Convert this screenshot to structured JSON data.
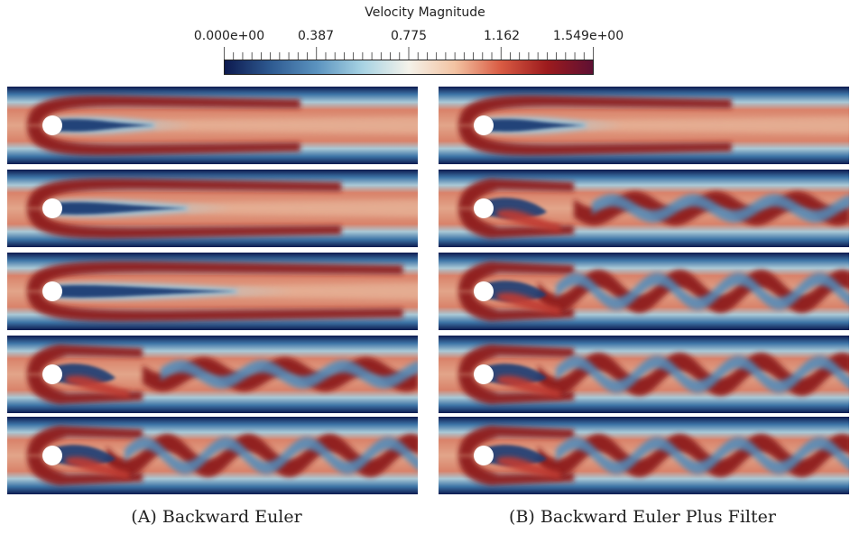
{
  "colorbar": {
    "title": "Velocity Magnitude",
    "tick_labels": [
      "0.000e+00",
      "0.387",
      "0.775",
      "1.162",
      "1.549e+00"
    ],
    "tick_values": [
      0.0,
      0.387,
      0.775,
      1.162,
      1.549
    ],
    "range": [
      0.0,
      1.549
    ],
    "colors": [
      "#0d1a4f",
      "#2e5a91",
      "#5b93bf",
      "#a8d3e3",
      "#f4f2ea",
      "#f3c3a2",
      "#d95b43",
      "#9d1b1d",
      "#5e1033"
    ]
  },
  "captions": {
    "left_tag": "(A)",
    "left_text": "Backward Euler",
    "right_tag": "(B)",
    "right_text": "Backward Euler Plus Filter"
  },
  "panels": {
    "left": [
      {
        "wake": "steady",
        "wake_extent": 0.45
      },
      {
        "wake": "steady",
        "wake_extent": 0.55
      },
      {
        "wake": "steady",
        "wake_extent": 0.7
      },
      {
        "wake": "breaking"
      },
      {
        "wake": "shedding"
      }
    ],
    "right": [
      {
        "wake": "steady",
        "wake_extent": 0.45
      },
      {
        "wake": "breaking"
      },
      {
        "wake": "shedding"
      },
      {
        "wake": "shedding"
      },
      {
        "wake": "shedding"
      }
    ]
  }
}
